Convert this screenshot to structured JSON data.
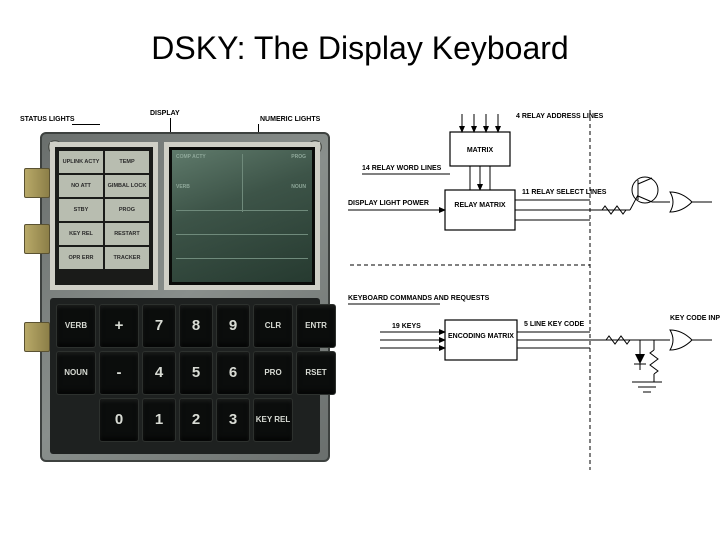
{
  "title": "DSKY: The Display Keyboard",
  "labels": {
    "status": "STATUS LIGHTS",
    "display": "DISPLAY",
    "numeric": "NUMERIC LIGHTS"
  },
  "status_cells": [
    "UPLINK ACTY",
    "TEMP",
    "NO ATT",
    "GIMBAL LOCK",
    "STBY",
    "PROG",
    "KEY REL",
    "RESTART",
    "OPR ERR",
    "TRACKER"
  ],
  "numeric_labels": {
    "comp": "COMP ACTY",
    "prog": "PROG",
    "verb": "VERB",
    "noun": "NOUN"
  },
  "keypad": [
    [
      "VERB",
      "+",
      "7",
      "8",
      "9",
      "CLR",
      "ENTR"
    ],
    [
      "NOUN",
      "-",
      "4",
      "5",
      "6",
      "PRO",
      "RSET"
    ],
    [
      "",
      "0",
      "1",
      "2",
      "3",
      "KEY REL",
      ""
    ]
  ],
  "schematic": {
    "boxes": {
      "matrix": "MATRIX",
      "relay_matrix": "RELAY MATRIX",
      "encoding": "ENCODING MATRIX"
    },
    "labels": {
      "relay_addr": "4  RELAY ADDRESS LINES",
      "relay_word": "14 RELAY WORD LINES",
      "display_power": "DISPLAY LIGHT POWER",
      "relay_select": "11 RELAY SELECT LINES",
      "kbd_cmd": "KEYBOARD COMMANDS AND REQUESTS",
      "keys19": "19 KEYS",
      "keycode5": "5 LINE KEY CODE",
      "keycode_in": "KEY CODE INPUTS"
    },
    "colors": {
      "line": "#000000",
      "bg": "#ffffff"
    }
  }
}
